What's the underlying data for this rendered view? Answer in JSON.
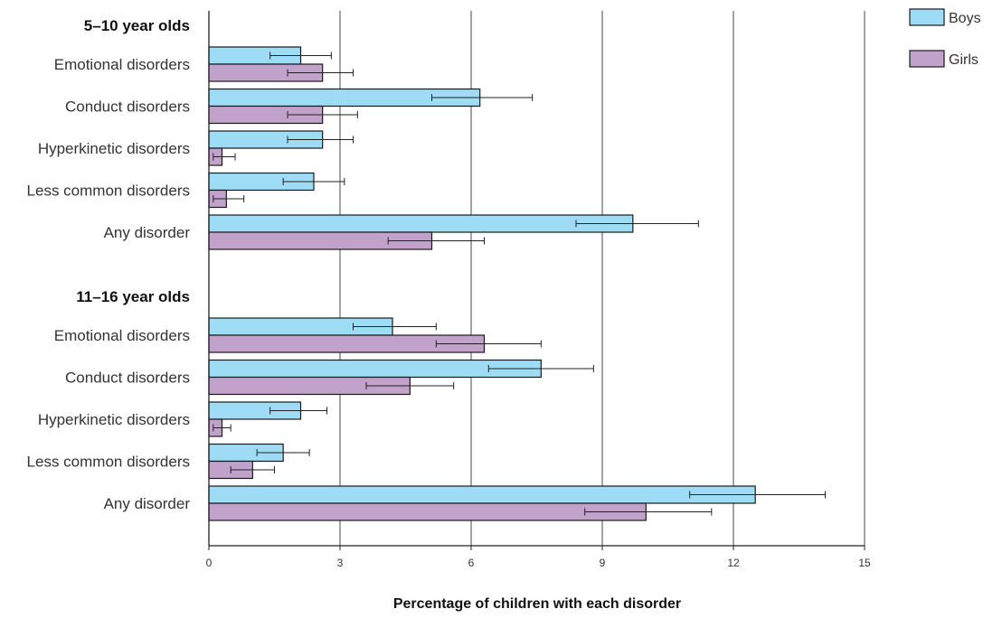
{
  "chart_data": {
    "type": "bar",
    "orientation": "horizontal",
    "xlabel": "Percentage of children with each disorder",
    "xlim": [
      0,
      15
    ],
    "xticks": [
      0,
      3,
      6,
      9,
      12,
      15
    ],
    "grid": "vertical",
    "legend_position": "top-right",
    "legend": [
      "Boys",
      "Girls"
    ],
    "colors": {
      "Boys": "#9edcf5",
      "Girls": "#c0a2cb"
    },
    "groups": [
      {
        "name": "5–10 year olds",
        "categories": [
          {
            "label": "Emotional disorders",
            "boys": 2.1,
            "boys_err": [
              1.4,
              2.8
            ],
            "girls": 2.6,
            "girls_err": [
              1.8,
              3.3
            ]
          },
          {
            "label": "Conduct disorders",
            "boys": 6.2,
            "boys_err": [
              5.1,
              7.4
            ],
            "girls": 2.6,
            "girls_err": [
              1.8,
              3.4
            ]
          },
          {
            "label": "Hyperkinetic disorders",
            "boys": 2.6,
            "boys_err": [
              1.8,
              3.3
            ],
            "girls": 0.3,
            "girls_err": [
              0.1,
              0.6
            ]
          },
          {
            "label": "Less common disorders",
            "boys": 2.4,
            "boys_err": [
              1.7,
              3.1
            ],
            "girls": 0.4,
            "girls_err": [
              0.1,
              0.8
            ]
          },
          {
            "label": "Any disorder",
            "boys": 9.7,
            "boys_err": [
              8.4,
              11.2
            ],
            "girls": 5.1,
            "girls_err": [
              4.1,
              6.3
            ]
          }
        ]
      },
      {
        "name": "11–16 year olds",
        "categories": [
          {
            "label": "Emotional disorders",
            "boys": 4.2,
            "boys_err": [
              3.3,
              5.2
            ],
            "girls": 6.3,
            "girls_err": [
              5.2,
              7.6
            ]
          },
          {
            "label": "Conduct disorders",
            "boys": 7.6,
            "boys_err": [
              6.4,
              8.8
            ],
            "girls": 4.6,
            "girls_err": [
              3.6,
              5.6
            ]
          },
          {
            "label": "Hyperkinetic disorders",
            "boys": 2.1,
            "boys_err": [
              1.4,
              2.7
            ],
            "girls": 0.3,
            "girls_err": [
              0.1,
              0.5
            ]
          },
          {
            "label": "Less common disorders",
            "boys": 1.7,
            "boys_err": [
              1.1,
              2.3
            ],
            "girls": 1.0,
            "girls_err": [
              0.5,
              1.5
            ]
          },
          {
            "label": "Any disorder",
            "boys": 12.5,
            "boys_err": [
              11.0,
              14.1
            ],
            "girls": 10.0,
            "girls_err": [
              8.6,
              11.5
            ]
          }
        ]
      }
    ]
  }
}
